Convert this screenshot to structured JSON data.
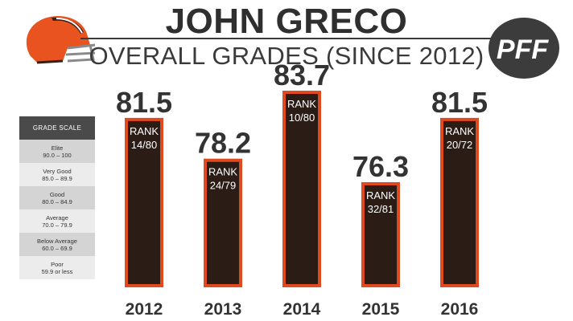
{
  "header": {
    "title": "JOHN GRECO",
    "subtitle": "OVERALL GRADES (SINCE 2012)",
    "logo_text": "PFF"
  },
  "colors": {
    "bar_fill": "#2b1c16",
    "bar_border": "#e04a1f",
    "text_dark": "#333333",
    "helmet_orange": "#e8531f",
    "helmet_brown": "#3a2014"
  },
  "icons": {
    "team": "football-helmet-icon",
    "brand": "pff-football-logo-icon"
  },
  "grade_scale": {
    "header": "GRADE SCALE",
    "rows": [
      {
        "label": "Elite",
        "range": "90.0 – 100"
      },
      {
        "label": "Very Good",
        "range": "85.0 – 89.9"
      },
      {
        "label": "Good",
        "range": "80.0 – 84.9"
      },
      {
        "label": "Average",
        "range": "70.0 – 79.9"
      },
      {
        "label": "Below Average",
        "range": "60.0 – 69.9"
      },
      {
        "label": "Poor",
        "range": "59.9 or less"
      }
    ]
  },
  "chart_data": {
    "type": "bar",
    "title": "OVERALL GRADES (SINCE 2012)",
    "categories": [
      "2012",
      "2013",
      "2014",
      "2015",
      "2016"
    ],
    "values": [
      81.5,
      78.2,
      83.7,
      76.3,
      81.5
    ],
    "value_labels": [
      "81.5",
      "78.2",
      "83.7",
      "76.3",
      "81.5"
    ],
    "rank_label": "RANK",
    "ranks": [
      "14/80",
      "24/79",
      "10/80",
      "32/81",
      "20/72"
    ],
    "xlabel": "",
    "ylabel": "",
    "grid": false,
    "legend": "none"
  }
}
